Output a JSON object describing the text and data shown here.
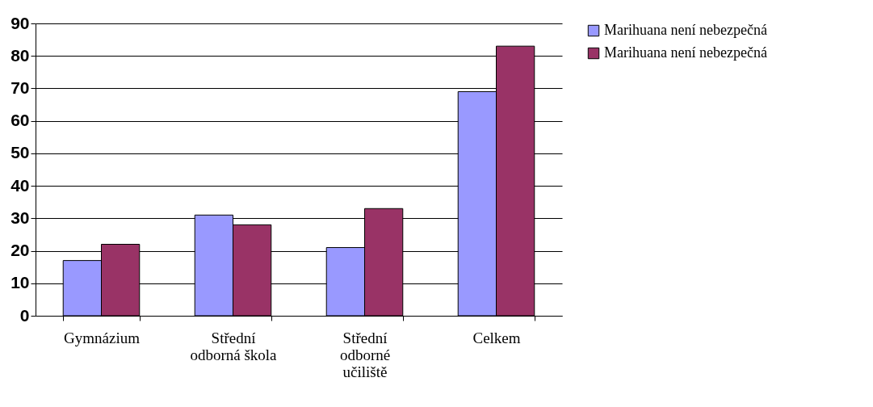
{
  "chart_data": {
    "type": "bar",
    "categories": [
      "Gymnázium",
      "Střední odborná škola",
      "Střední odborné učiliště",
      "Celkem"
    ],
    "series": [
      {
        "name": "Marihuana není nebezpečná",
        "color": "#9999ff",
        "values": [
          17,
          31,
          21,
          69
        ]
      },
      {
        "name": "Marihuana není nebezpečná",
        "color": "#993366",
        "values": [
          22,
          28,
          33,
          83
        ]
      }
    ],
    "ylim": [
      0,
      90
    ],
    "yticks": [
      0,
      10,
      20,
      30,
      40,
      50,
      60,
      70,
      80,
      90
    ],
    "grid": "y",
    "legend": "right"
  }
}
